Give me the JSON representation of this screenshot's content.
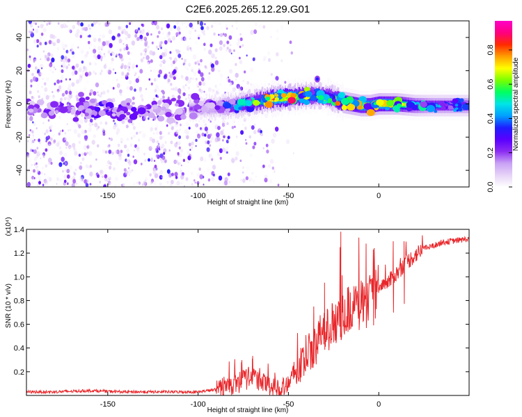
{
  "title": "C2E6.2025.265.12.29.G01",
  "colors": {
    "snr_line": "#e8262a",
    "colormap": [
      "#ffffff",
      "#e6d3f7",
      "#c9a1f5",
      "#8c2cf2",
      "#5a00ff",
      "#1e1eff",
      "#00a0ff",
      "#00e5e5",
      "#00ff60",
      "#7aff00",
      "#ffff00",
      "#ffa000",
      "#ff2a00",
      "#ff0080",
      "#ff00c8"
    ]
  },
  "chart_data": [
    {
      "type": "heatmap",
      "xlabel": "Height of straight line (km)",
      "ylabel": "Frequency (Hz)",
      "xlim": [
        -195,
        50
      ],
      "ylim": [
        -50,
        50
      ],
      "xticks": [
        -150,
        -100,
        -50,
        0
      ],
      "xtick_labels": [
        "-150",
        "-100",
        "-50",
        "0"
      ],
      "yticks": [
        -40,
        -20,
        0,
        20,
        40
      ],
      "ytick_labels": [
        "-40",
        "-20",
        "0",
        "20",
        "40"
      ],
      "colorbar": {
        "label": "Normalized spectral amplitude",
        "range": [
          0,
          0.97
        ],
        "ticks": [
          0.0,
          0.2,
          0.4,
          0.6,
          0.8
        ],
        "tick_labels": [
          "0.0",
          "0.2",
          "0.4",
          "0.6",
          "0.8"
        ]
      },
      "signal_track": {
        "heights_km": [
          -195,
          -150,
          -105,
          -90,
          -80,
          -70,
          -60,
          -50,
          -40,
          -33,
          -27,
          -20,
          -15,
          -10,
          -5,
          0,
          10,
          20,
          30,
          40,
          50
        ],
        "center_freq_hz": [
          -3,
          -3,
          -3,
          -2,
          -1,
          1,
          3,
          4,
          5,
          5,
          4,
          1,
          0,
          -1,
          -1,
          0,
          0,
          -1,
          -1,
          -1,
          -1
        ],
        "peak_amplitude": [
          0.25,
          0.3,
          0.2,
          0.3,
          0.45,
          0.6,
          0.85,
          0.9,
          0.7,
          0.6,
          0.7,
          0.8,
          0.85,
          0.8,
          0.8,
          0.85,
          0.75,
          0.55,
          0.45,
          0.45,
          0.45
        ]
      }
    },
    {
      "type": "line",
      "xlabel": "Height of straight line (km)",
      "ylabel": "SNR (10 * v/v)",
      "y_multiplier_label": "(x10⁴)",
      "xlim": [
        -195,
        50
      ],
      "ylim": [
        0,
        1.4
      ],
      "xticks": [
        -150,
        -100,
        -50,
        0
      ],
      "xtick_labels": [
        "-150",
        "-100",
        "-50",
        "0"
      ],
      "yticks": [
        0.2,
        0.4,
        0.6,
        0.8,
        1.0,
        1.2,
        1.4
      ],
      "ytick_labels": [
        "0.2",
        "0.4",
        "0.6",
        "0.8",
        "1.0",
        "1.2",
        "1.4"
      ],
      "series": [
        {
          "x": [
            -195,
            -180,
            -160,
            -140,
            -120,
            -100,
            -90,
            -80,
            -75,
            -70,
            -65,
            -60,
            -55,
            -50,
            -45,
            -40,
            -35,
            -30,
            -25,
            -20,
            -15,
            -10,
            -5,
            0,
            5,
            10,
            15,
            20,
            25,
            30,
            35,
            40,
            45,
            50
          ],
          "y": [
            0.03,
            0.03,
            0.04,
            0.03,
            0.03,
            0.03,
            0.05,
            0.1,
            0.14,
            0.17,
            0.12,
            0.08,
            0.06,
            0.12,
            0.2,
            0.32,
            0.4,
            0.55,
            0.62,
            0.68,
            0.74,
            0.8,
            0.82,
            0.88,
            0.95,
            1.03,
            1.12,
            1.18,
            1.24,
            1.26,
            1.29,
            1.3,
            1.31,
            1.32
          ],
          "spikes": [
            {
              "x": -21,
              "y": 1.38
            },
            {
              "x": -11,
              "y": 1.33
            },
            {
              "x": -7,
              "y": 1.28
            },
            {
              "x": -3,
              "y": 1.23
            },
            {
              "x": 8,
              "y": 1.3
            },
            {
              "x": 14,
              "y": 1.3
            },
            {
              "x": -30,
              "y": 0.95
            },
            {
              "x": -36,
              "y": 0.75
            },
            {
              "x": -70,
              "y": 0.31
            },
            {
              "x": -76,
              "y": 0.28
            }
          ]
        }
      ]
    }
  ]
}
